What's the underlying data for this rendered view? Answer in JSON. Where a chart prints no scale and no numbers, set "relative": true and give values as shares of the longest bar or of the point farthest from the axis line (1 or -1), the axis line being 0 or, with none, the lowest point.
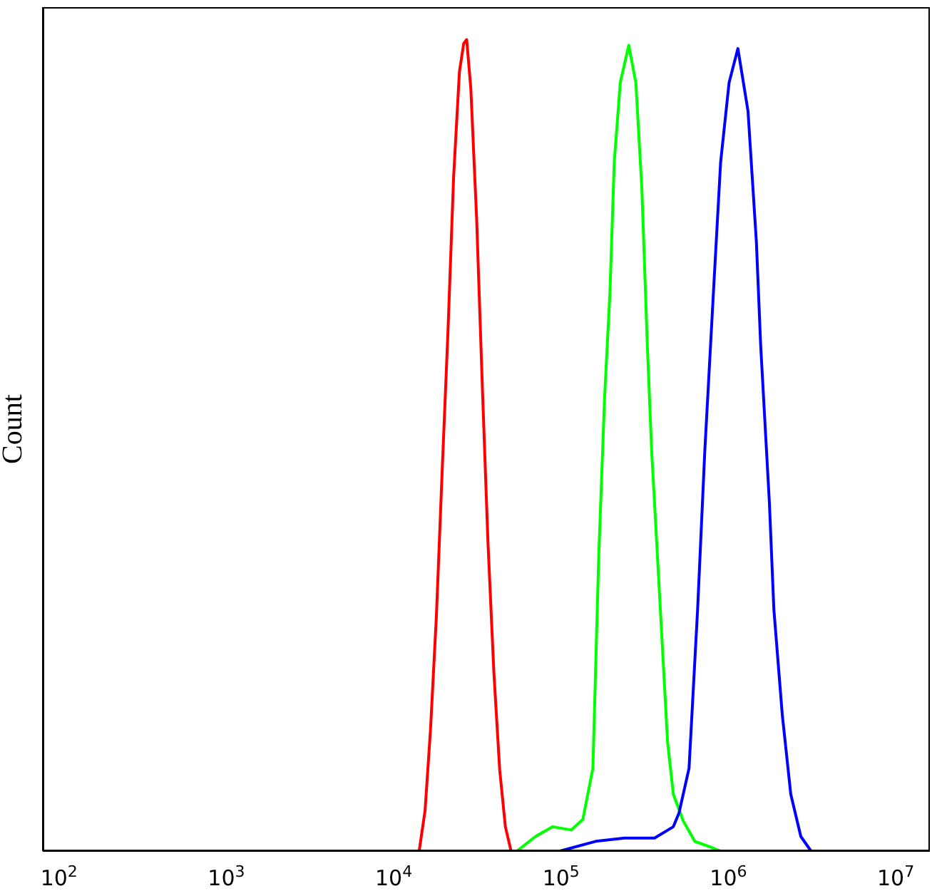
{
  "chart_data": {
    "type": "line",
    "ylabel": "Count",
    "relative": true,
    "log": "x",
    "grid": false,
    "marker": "none",
    "line_style": "solid",
    "xlim": [
      80,
      16000000
    ],
    "xticks": [
      {
        "value": 100,
        "label": "10$^{2}$"
      },
      {
        "value": 1000,
        "label": "10$^{3}$"
      },
      {
        "value": 10000,
        "label": "10$^{4}$"
      },
      {
        "value": 100000,
        "label": "10$^{5}$"
      },
      {
        "value": 1000000,
        "label": "10$^{6}$"
      },
      {
        "value": 10000000,
        "label": "10$^{7}$"
      }
    ],
    "series": [
      {
        "color": "#ff0000",
        "x": [
          14200,
          15400,
          16600,
          18000,
          19500,
          21100,
          22800,
          24700,
          26200,
          27300,
          28900,
          31300,
          33900,
          36600,
          39700,
          43000,
          46500,
          50300
        ],
        "values": [
          0,
          0.05,
          0.15,
          0.29,
          0.47,
          0.64,
          0.83,
          0.96,
          0.995,
          1,
          0.94,
          0.78,
          0.57,
          0.38,
          0.22,
          0.1,
          0.03,
          0
        ]
      },
      {
        "color": "#00ff00",
        "x": [
          54500,
          70400,
          89100,
          115000,
          135000,
          155000,
          168000,
          182000,
          196000,
          208000,
          226000,
          254000,
          280000,
          304000,
          328000,
          348000,
          377000,
          408000,
          433000,
          469000,
          538000,
          630000,
          783000,
          899000
        ],
        "values": [
          0,
          0.018,
          0.03,
          0.026,
          0.039,
          0.102,
          0.363,
          0.558,
          0.688,
          0.849,
          0.947,
          0.993,
          0.947,
          0.817,
          0.623,
          0.493,
          0.363,
          0.233,
          0.135,
          0.07,
          0.037,
          0.012,
          0.005,
          0
        ]
      },
      {
        "color": "#0000ff",
        "x": [
          98400,
          161000,
          239000,
          362000,
          469000,
          507000,
          582000,
          655000,
          723000,
          814000,
          899000,
          1010000,
          1140000,
          1310000,
          1470000,
          1560000,
          1760000,
          1870000,
          2100000,
          2360000,
          2710000,
          3120000
        ],
        "values": [
          0,
          0.012,
          0.016,
          0.016,
          0.03,
          0.047,
          0.102,
          0.298,
          0.493,
          0.688,
          0.849,
          0.947,
          0.989,
          0.912,
          0.751,
          0.623,
          0.428,
          0.298,
          0.168,
          0.07,
          0.018,
          0
        ]
      }
    ]
  }
}
